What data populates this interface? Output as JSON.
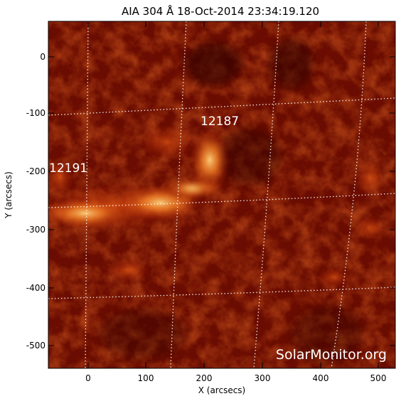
{
  "title": "AIA 304 Å 18-Oct-2014 23:34:19.120",
  "xlabel": "X (arcsecs)",
  "ylabel": "Y (arcsecs)",
  "x_ticks": [
    "0",
    "100",
    "200",
    "300",
    "400",
    "500"
  ],
  "y_ticks": [
    "0",
    "-100",
    "-200",
    "-300",
    "-400",
    "-500"
  ],
  "regions": [
    {
      "label": "12187"
    },
    {
      "label": "12191"
    }
  ],
  "watermark": "SolarMonitor.org",
  "colors": {
    "background": "#ffffff",
    "sun_dark": "#3a0500",
    "sun_mid": "#a81e04",
    "sun_bright": "#ff9a35",
    "grid": "#ffffff"
  }
}
